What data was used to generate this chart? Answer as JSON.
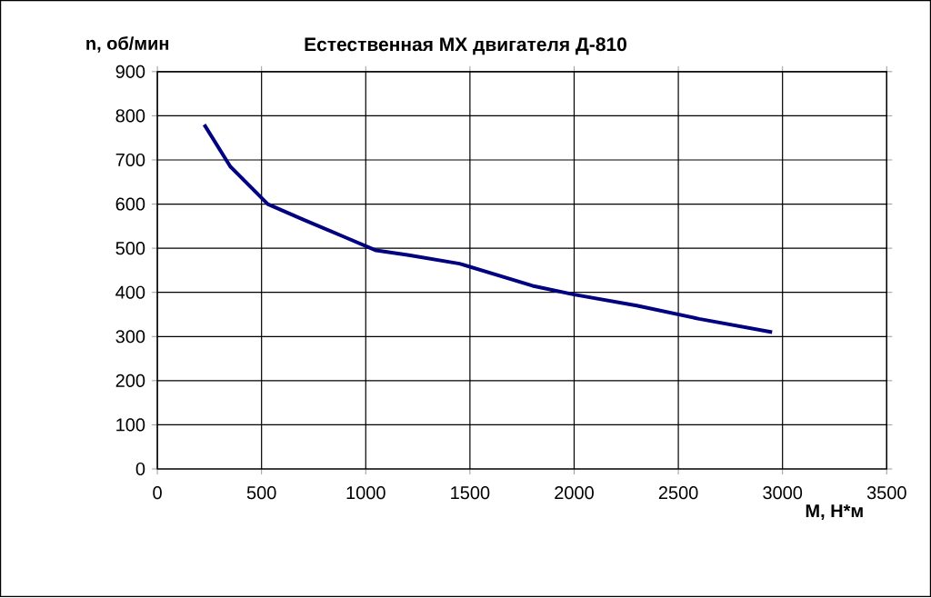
{
  "chart_data": {
    "type": "line",
    "title": "Естественная МХ двигателя Д-810",
    "xlabel": "М, Н*м",
    "ylabel": "n, об/мин",
    "x": [
      225,
      350,
      530,
      700,
      900,
      1050,
      1200,
      1450,
      1800,
      2000,
      2300,
      2600,
      2950
    ],
    "series": [
      {
        "color": "#000080",
        "values": [
          780,
          685,
          600,
          565,
          525,
          495,
          485,
          465,
          415,
          395,
          370,
          340,
          310
        ]
      }
    ],
    "xlim": [
      0,
      3500
    ],
    "xticks": [
      0,
      500,
      1000,
      1500,
      2000,
      2500,
      3000,
      3500
    ],
    "ylim": [
      0,
      900
    ],
    "yticks": [
      0,
      100,
      200,
      300,
      400,
      500,
      600,
      700,
      800,
      900
    ],
    "grid": true,
    "marker": "none",
    "line_style": "solid"
  }
}
